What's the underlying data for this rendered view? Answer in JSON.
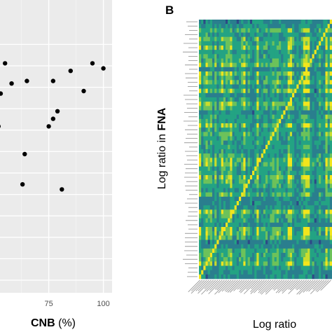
{
  "panels": {
    "a": {
      "xlabel_bold": "CNB",
      "xlabel_rest": " (%)",
      "chart_data": {
        "type": "scatter",
        "xticks": [
          75,
          100
        ],
        "xlim": [
          53,
          102
        ],
        "ylim": [
          0,
          100
        ],
        "grid": true,
        "points": [
          {
            "x": 55,
            "y": 91
          },
          {
            "x": 85,
            "y": 88
          },
          {
            "x": 95,
            "y": 91
          },
          {
            "x": 100,
            "y": 89
          },
          {
            "x": 58,
            "y": 83
          },
          {
            "x": 65,
            "y": 84
          },
          {
            "x": 77,
            "y": 84
          },
          {
            "x": 53,
            "y": 79
          },
          {
            "x": 91,
            "y": 80
          },
          {
            "x": 79,
            "y": 72
          },
          {
            "x": 77,
            "y": 69
          },
          {
            "x": 75,
            "y": 66
          },
          {
            "x": 52,
            "y": 66
          },
          {
            "x": 64,
            "y": 55
          },
          {
            "x": 63,
            "y": 43
          },
          {
            "x": 81,
            "y": 41
          }
        ]
      }
    },
    "b": {
      "letter": "B",
      "ylabel_rest": "Log ratio in ",
      "ylabel_bold": "FNA",
      "xlabel": "Log ratio",
      "chart_data": {
        "type": "heatmap",
        "rows": 60,
        "cols": 60,
        "diagonal": "high",
        "colorscale": [
          "#2e4a87",
          "#2a7e8e",
          "#23a383",
          "#6cc25a",
          "#c9dd2c",
          "#f2e51d"
        ],
        "background": "#2b8b8b"
      }
    }
  }
}
